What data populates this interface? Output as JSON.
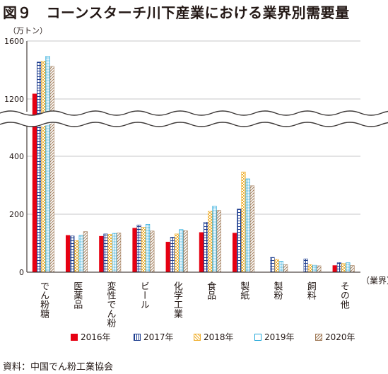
{
  "page": {
    "title": "図９　コーンスターチ川下産業における業界別需要量",
    "source": "資料：中国でん粉工業協会"
  },
  "chart_data": {
    "type": "bar",
    "title": "図９　コーンスターチ川下産業における業界別需要量",
    "ylabel": "（万トン）",
    "xlabel": "（業界）",
    "ylim": [
      0,
      1600
    ],
    "axis_break": [
      400,
      1200
    ],
    "yticks": [
      0,
      200,
      400,
      1200,
      1600
    ],
    "categories": [
      "でん粉糖",
      "医薬品",
      "変性でん粉",
      "ビール",
      "化学工業",
      "食品",
      "製紙",
      "製粉",
      "飼料",
      "その他"
    ],
    "series": [
      {
        "name": "2016年",
        "color": "#e60012",
        "pattern": "solid",
        "values": [
          1235,
          127,
          124,
          152,
          104,
          137,
          135,
          0,
          0,
          23
        ]
      },
      {
        "name": "2017年",
        "color": "#1d3d8f",
        "pattern": "grid",
        "values": [
          1455,
          125,
          132,
          163,
          121,
          172,
          218,
          51,
          46,
          33
        ]
      },
      {
        "name": "2018年",
        "color": "#f0b030",
        "pattern": "dots",
        "values": [
          1460,
          109,
          131,
          155,
          132,
          210,
          346,
          44,
          26,
          30
        ]
      },
      {
        "name": "2019年",
        "color": "#22a7d9",
        "pattern": "boxes",
        "values": [
          1495,
          127,
          134,
          165,
          147,
          228,
          322,
          38,
          24,
          33
        ]
      },
      {
        "name": "2020年",
        "color": "#a07a57",
        "pattern": "diag",
        "values": [
          1425,
          140,
          135,
          142,
          143,
          213,
          298,
          26,
          22,
          23
        ]
      }
    ]
  }
}
